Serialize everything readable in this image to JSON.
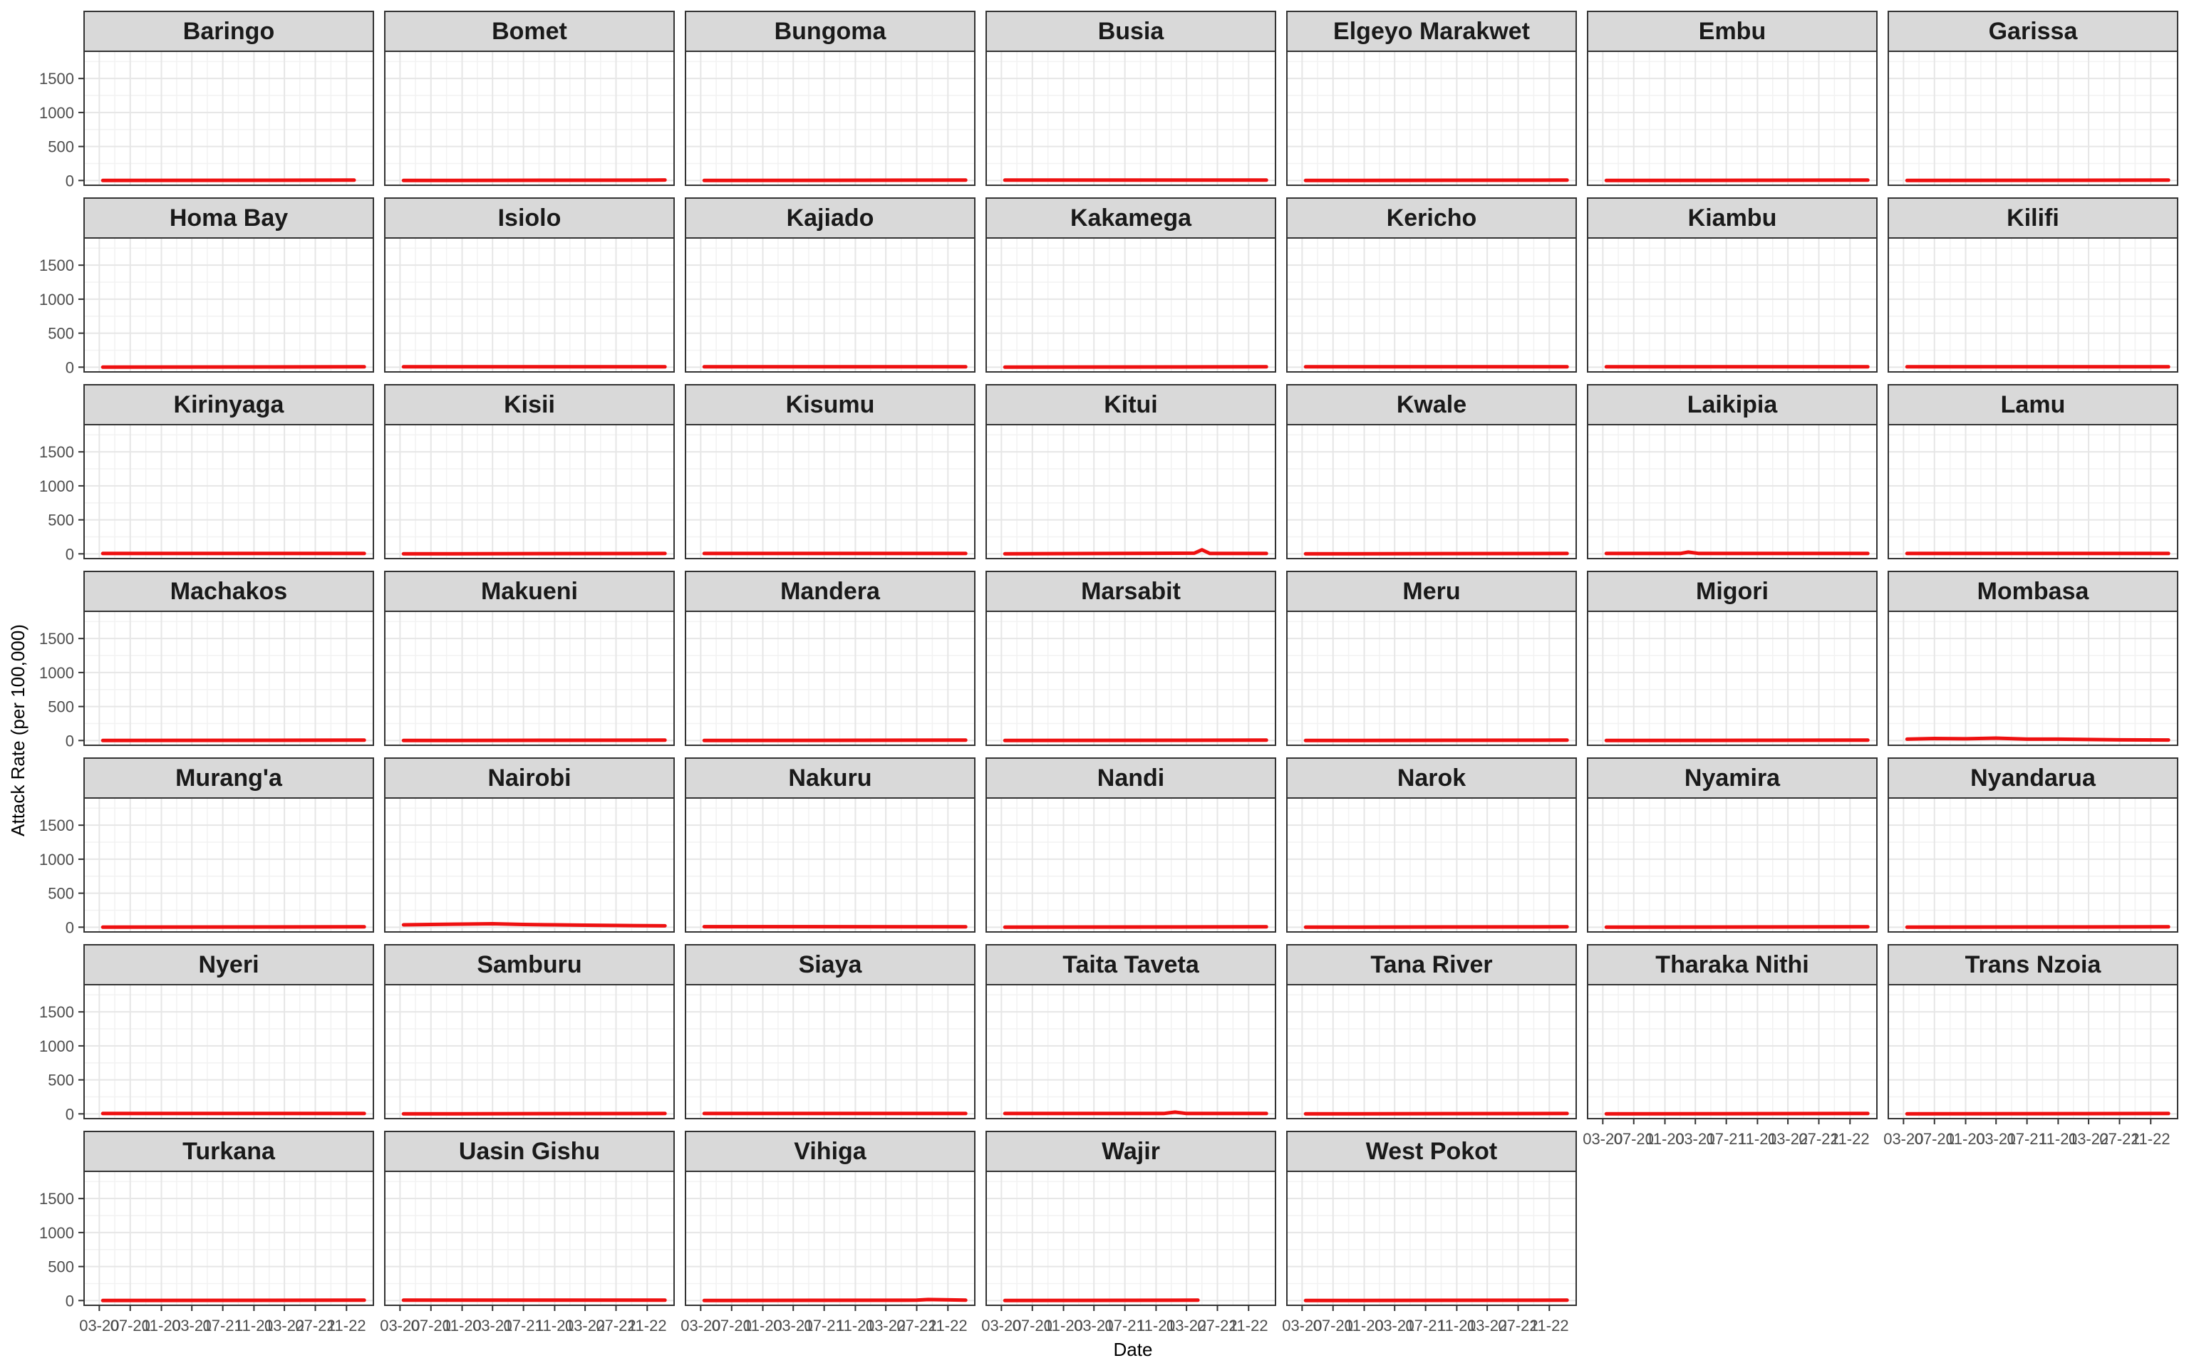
{
  "chart_data": {
    "type": "line",
    "facet_by": "county",
    "xlabel": "Date",
    "ylabel": "Attack Rate (per 100,000)",
    "ylim": [
      -70,
      1900
    ],
    "yticks": [
      0,
      500,
      1000,
      1500
    ],
    "ytick_labels": [
      "0",
      "500",
      "1000",
      "1500"
    ],
    "xlim": [
      "2020-01-01",
      "2023-02-15"
    ],
    "xticks": [
      "2020-03-01",
      "2020-07-01",
      "2020-11-01",
      "2021-03-01",
      "2021-07-01",
      "2021-11-01",
      "2022-03-01",
      "2022-07-01",
      "2022-11-01"
    ],
    "xtick_labels": [
      "03-20",
      "07-20",
      "11-20",
      "03-21",
      "07-21",
      "11-21",
      "03-22",
      "07-22",
      "11-22"
    ],
    "grid": true,
    "line_color": "#ee1111",
    "panel_border_color": "#333333",
    "strip_fill": "#d9d9d9",
    "gridline_color": "#ebebeb",
    "panels": [
      {
        "name": "Baringo",
        "dates": [
          "2020-03-15",
          "2022-12-01"
        ],
        "values": [
          0,
          5
        ]
      },
      {
        "name": "Bomet",
        "dates": [
          "2020-03-15",
          "2022-12-01",
          "2023-01-10"
        ],
        "values": [
          0,
          5,
          8
        ]
      },
      {
        "name": "Bungoma",
        "dates": [
          "2020-03-15",
          "2023-01-10"
        ],
        "values": [
          0,
          5
        ]
      },
      {
        "name": "Busia",
        "dates": [
          "2020-03-15",
          "2023-01-10"
        ],
        "values": [
          5,
          5
        ]
      },
      {
        "name": "Elgeyo Marakwet",
        "dates": [
          "2020-03-15",
          "2023-01-10"
        ],
        "values": [
          0,
          5
        ]
      },
      {
        "name": "Embu",
        "dates": [
          "2020-03-15",
          "2023-01-10"
        ],
        "values": [
          0,
          5
        ]
      },
      {
        "name": "Garissa",
        "dates": [
          "2020-03-15",
          "2023-01-10"
        ],
        "values": [
          0,
          5
        ]
      },
      {
        "name": "Homa Bay",
        "dates": [
          "2020-03-15",
          "2023-01-10"
        ],
        "values": [
          0,
          5
        ]
      },
      {
        "name": "Isiolo",
        "dates": [
          "2020-03-15",
          "2023-01-10"
        ],
        "values": [
          5,
          5
        ]
      },
      {
        "name": "Kajiado",
        "dates": [
          "2020-03-15",
          "2023-01-10"
        ],
        "values": [
          5,
          5
        ]
      },
      {
        "name": "Kakamega",
        "dates": [
          "2020-03-15",
          "2023-01-10"
        ],
        "values": [
          0,
          5
        ]
      },
      {
        "name": "Kericho",
        "dates": [
          "2020-03-15",
          "2023-01-10"
        ],
        "values": [
          5,
          5
        ]
      },
      {
        "name": "Kiambu",
        "dates": [
          "2020-03-15",
          "2023-01-10"
        ],
        "values": [
          5,
          5
        ]
      },
      {
        "name": "Kilifi",
        "dates": [
          "2020-03-15",
          "2023-01-10"
        ],
        "values": [
          5,
          5
        ]
      },
      {
        "name": "Kirinyaga",
        "dates": [
          "2020-03-15",
          "2023-01-10"
        ],
        "values": [
          5,
          5
        ]
      },
      {
        "name": "Kisii",
        "dates": [
          "2020-03-15",
          "2023-01-10"
        ],
        "values": [
          0,
          5
        ]
      },
      {
        "name": "Kisumu",
        "dates": [
          "2020-03-15",
          "2023-01-10"
        ],
        "values": [
          5,
          5
        ]
      },
      {
        "name": "Kitui",
        "dates": [
          "2020-03-15",
          "2022-04-01",
          "2022-05-01",
          "2022-06-01",
          "2023-01-10"
        ],
        "values": [
          0,
          10,
          60,
          5,
          5
        ]
      },
      {
        "name": "Kwale",
        "dates": [
          "2020-03-15",
          "2023-01-10"
        ],
        "values": [
          0,
          5
        ]
      },
      {
        "name": "Laikipia",
        "dates": [
          "2020-03-15",
          "2021-01-01",
          "2021-02-01",
          "2021-03-15",
          "2023-01-10"
        ],
        "values": [
          5,
          5,
          25,
          5,
          5
        ]
      },
      {
        "name": "Lamu",
        "dates": [
          "2020-03-15",
          "2023-01-10"
        ],
        "values": [
          5,
          5
        ]
      },
      {
        "name": "Machakos",
        "dates": [
          "2020-03-15",
          "2023-01-10"
        ],
        "values": [
          0,
          5
        ]
      },
      {
        "name": "Makueni",
        "dates": [
          "2020-03-15",
          "2023-01-10"
        ],
        "values": [
          0,
          5
        ]
      },
      {
        "name": "Mandera",
        "dates": [
          "2020-03-15",
          "2023-01-10"
        ],
        "values": [
          0,
          5
        ]
      },
      {
        "name": "Marsabit",
        "dates": [
          "2020-03-15",
          "2023-01-10"
        ],
        "values": [
          0,
          5
        ]
      },
      {
        "name": "Meru",
        "dates": [
          "2020-03-15",
          "2023-01-10"
        ],
        "values": [
          0,
          5
        ]
      },
      {
        "name": "Migori",
        "dates": [
          "2020-03-15",
          "2023-01-10"
        ],
        "values": [
          0,
          5
        ]
      },
      {
        "name": "Mombasa",
        "dates": [
          "2020-03-15",
          "2020-07-01",
          "2020-11-01",
          "2021-03-01",
          "2021-07-01",
          "2021-11-01",
          "2022-03-01",
          "2022-07-01",
          "2023-01-10"
        ],
        "values": [
          20,
          30,
          25,
          35,
          20,
          20,
          15,
          10,
          8
        ]
      },
      {
        "name": "Murang'a",
        "dates": [
          "2020-03-15",
          "2023-01-10"
        ],
        "values": [
          0,
          5
        ]
      },
      {
        "name": "Nairobi",
        "dates": [
          "2020-03-15",
          "2020-07-01",
          "2020-11-01",
          "2021-03-01",
          "2021-07-01",
          "2021-11-01",
          "2022-03-01",
          "2022-07-01",
          "2023-01-10"
        ],
        "values": [
          35,
          40,
          45,
          50,
          40,
          35,
          30,
          25,
          20
        ]
      },
      {
        "name": "Nakuru",
        "dates": [
          "2020-03-15",
          "2023-01-10"
        ],
        "values": [
          8,
          5
        ]
      },
      {
        "name": "Nandi",
        "dates": [
          "2020-03-15",
          "2023-01-10"
        ],
        "values": [
          0,
          5
        ]
      },
      {
        "name": "Narok",
        "dates": [
          "2020-03-15",
          "2023-01-10"
        ],
        "values": [
          0,
          5
        ]
      },
      {
        "name": "Nyamira",
        "dates": [
          "2020-03-15",
          "2023-01-10"
        ],
        "values": [
          0,
          5
        ]
      },
      {
        "name": "Nyandarua",
        "dates": [
          "2020-03-15",
          "2023-01-10"
        ],
        "values": [
          0,
          5
        ]
      },
      {
        "name": "Nyeri",
        "dates": [
          "2020-03-15",
          "2023-01-10"
        ],
        "values": [
          5,
          5
        ]
      },
      {
        "name": "Samburu",
        "dates": [
          "2020-03-15",
          "2023-01-10"
        ],
        "values": [
          0,
          5
        ]
      },
      {
        "name": "Siaya",
        "dates": [
          "2020-03-15",
          "2023-01-10"
        ],
        "values": [
          5,
          5
        ]
      },
      {
        "name": "Taita Taveta",
        "dates": [
          "2020-03-15",
          "2021-12-01",
          "2022-01-15",
          "2022-03-01",
          "2023-01-10"
        ],
        "values": [
          5,
          5,
          25,
          5,
          5
        ]
      },
      {
        "name": "Tana River",
        "dates": [
          "2020-03-15",
          "2023-01-10"
        ],
        "values": [
          0,
          5
        ]
      },
      {
        "name": "Tharaka Nithi",
        "dates": [
          "2020-03-15",
          "2023-01-10"
        ],
        "values": [
          0,
          5
        ]
      },
      {
        "name": "Trans Nzoia",
        "dates": [
          "2020-03-15",
          "2023-01-10"
        ],
        "values": [
          0,
          5
        ]
      },
      {
        "name": "Turkana",
        "dates": [
          "2020-03-15",
          "2023-01-10"
        ],
        "values": [
          0,
          5
        ]
      },
      {
        "name": "Uasin Gishu",
        "dates": [
          "2020-03-15",
          "2023-01-10"
        ],
        "values": [
          5,
          5
        ]
      },
      {
        "name": "Vihiga",
        "dates": [
          "2020-03-15",
          "2022-07-01",
          "2022-08-15",
          "2023-01-10"
        ],
        "values": [
          0,
          5,
          15,
          5
        ]
      },
      {
        "name": "Wajir",
        "dates": [
          "2020-03-15",
          "2022-04-15"
        ],
        "values": [
          0,
          5
        ]
      },
      {
        "name": "West Pokot",
        "dates": [
          "2020-03-15",
          "2023-01-10"
        ],
        "values": [
          0,
          5
        ]
      }
    ]
  }
}
